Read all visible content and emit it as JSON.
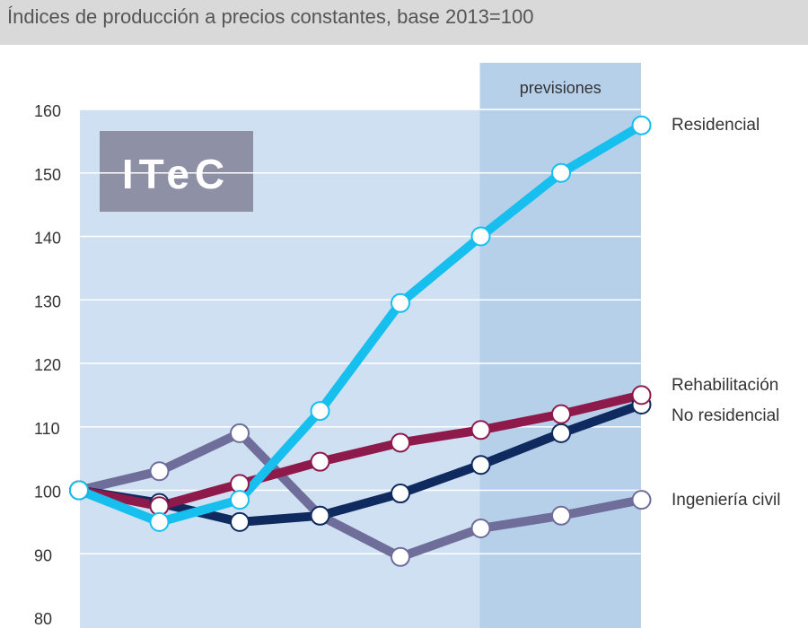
{
  "header": {
    "title": "Índices de producción a precios constantes, base 2013=100"
  },
  "logo": {
    "text": "ITeC"
  },
  "colors": {
    "plot_bg": "#cfe0f2",
    "forecast_bg": "#b7d0ea",
    "grid": "#ffffff",
    "logo_bg": "#8e90a6",
    "logo_text": "#ffffff",
    "axis_text": "#333333"
  },
  "chart_data": {
    "type": "line",
    "ylim": [
      80,
      160
    ],
    "yticks": [
      80,
      90,
      100,
      110,
      120,
      130,
      140,
      150,
      160
    ],
    "forecast_label": "previsiones",
    "forecast_start_index": 5,
    "point_count": 8,
    "series": [
      {
        "name": "Residencial",
        "color": "#16bfee",
        "values": [
          100,
          95,
          98.5,
          112.5,
          129.5,
          140,
          150,
          157.5
        ]
      },
      {
        "name": "Rehabilitación",
        "color": "#8e1a4b",
        "values": [
          100,
          97.5,
          101,
          104.5,
          107.5,
          109.5,
          112,
          115
        ]
      },
      {
        "name": "No residencial",
        "color": "#0f2a5e",
        "values": [
          100,
          98,
          95,
          96,
          99.5,
          104,
          109,
          113.5
        ]
      },
      {
        "name": "Ingeniería civil",
        "color": "#6f6d9a",
        "values": [
          100,
          103,
          109,
          96,
          89.5,
          94,
          96,
          98.5
        ]
      }
    ]
  }
}
